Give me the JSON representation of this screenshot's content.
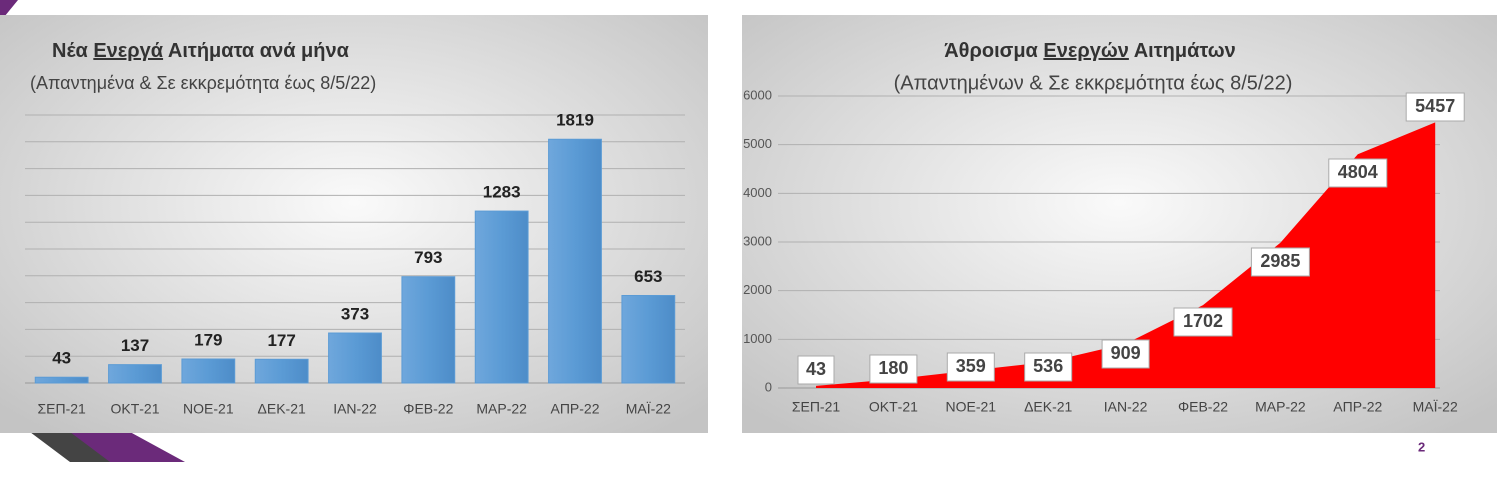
{
  "chart_data": [
    {
      "type": "bar",
      "title": "Νέα Ενεργά Αιτήματα ανά μήνα",
      "title_underline": "Ενεργά",
      "subtitle": "(Απαντημένα & Σε εκκρεμότητα έως 8/5/22)",
      "categories": [
        "ΣΕΠ-21",
        "ΟΚΤ-21",
        "ΝΟΕ-21",
        "ΔΕΚ-21",
        "ΙΑΝ-22",
        "ΦΕΒ-22",
        "ΜΑΡ-22",
        "ΑΠΡ-22",
        "ΜΑΪ-22"
      ],
      "values": [
        43,
        137,
        179,
        177,
        373,
        793,
        1283,
        1819,
        653
      ],
      "color": "#5b9bd5",
      "ylim": [
        0,
        2000
      ],
      "yticks": [
        0,
        200,
        400,
        600,
        800,
        1000,
        1200,
        1400,
        1600,
        1800,
        2000
      ],
      "grid": true,
      "tick_labels": false
    },
    {
      "type": "area",
      "title": "Άθροισμα Ενεργών Αιτημάτων",
      "title_underline": "Ενεργών",
      "subtitle": "(Απαντημένων & Σε εκκρεμότητα έως 8/5/22)",
      "categories": [
        "ΣΕΠ-21",
        "ΟΚΤ-21",
        "ΝΟΕ-21",
        "ΔΕΚ-21",
        "ΙΑΝ-22",
        "ΦΕΒ-22",
        "ΜΑΡ-22",
        "ΑΠΡ-22",
        "ΜΑΪ-22"
      ],
      "values": [
        43,
        180,
        359,
        536,
        909,
        1702,
        2985,
        4804,
        5457
      ],
      "color": "#ff0000",
      "ylim": [
        0,
        6000
      ],
      "yticks": [
        0,
        1000,
        2000,
        3000,
        4000,
        5000,
        6000
      ],
      "grid": true,
      "tick_labels": true
    }
  ],
  "page_number": 2
}
